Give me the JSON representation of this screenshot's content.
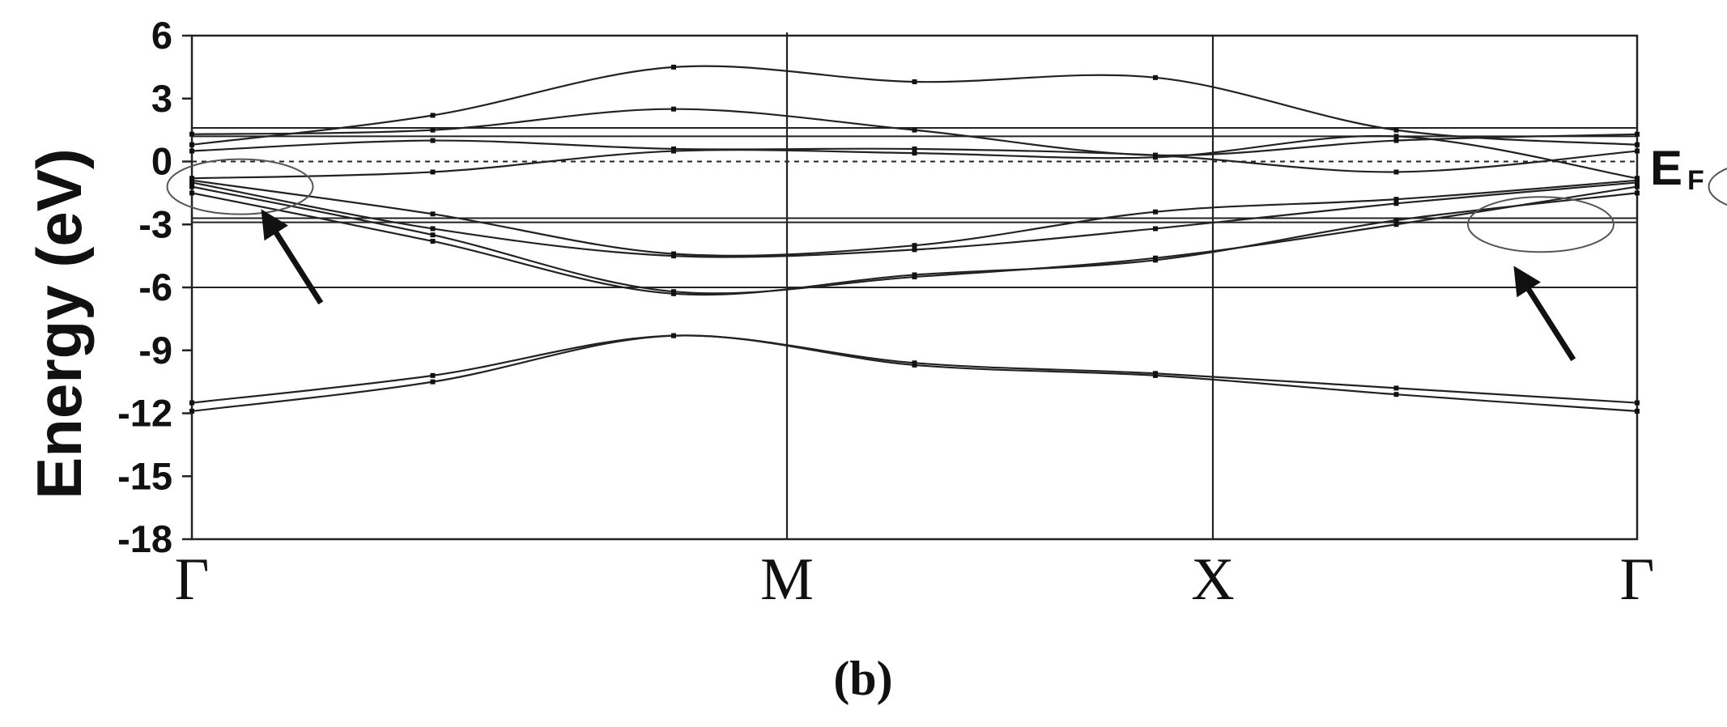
{
  "caption": "(b)",
  "fermi_label": {
    "main": "E",
    "sub": "F"
  },
  "chart_data": {
    "type": "line",
    "title": "",
    "xlabel": "",
    "ylabel": "Energy (eV)",
    "ylim": [
      -18,
      6
    ],
    "yticks": [
      6,
      3,
      0,
      -3,
      -6,
      -9,
      -12,
      -15,
      -18
    ],
    "ytick_labels": [
      "6",
      "3",
      "0",
      "-3",
      "-6",
      "-9",
      "-12",
      "-15",
      "-18"
    ],
    "xlim": [
      0,
      3
    ],
    "xticks": [
      0,
      1.41,
      2.41,
      3.41
    ],
    "xtick_labels": [
      "Γ",
      "M",
      "X",
      "Γ"
    ],
    "fermi_level": 0,
    "horizontal_lines": [
      1.6,
      1.2,
      -2.7,
      -2.9,
      -6.0
    ],
    "series": [
      {
        "x": [
          0,
          0.5,
          1,
          1.5,
          2,
          2.5,
          3
        ],
        "y": [
          0.8,
          2.2,
          4.5,
          3.8,
          4.0,
          1.5,
          0.8
        ]
      },
      {
        "x": [
          0,
          0.5,
          1,
          1.5,
          2,
          2.5,
          3
        ],
        "y": [
          1.3,
          1.5,
          2.5,
          1.5,
          0.3,
          1.0,
          1.3
        ]
      },
      {
        "x": [
          0,
          0.5,
          1,
          1.5,
          2,
          2.5,
          3
        ],
        "y": [
          0.5,
          1.0,
          0.6,
          0.6,
          0.3,
          -0.5,
          0.5
        ]
      },
      {
        "x": [
          0,
          0.5,
          1,
          1.5,
          2,
          2.5,
          3
        ],
        "y": [
          -0.8,
          -0.5,
          0.5,
          0.4,
          0.2,
          1.2,
          -0.8
        ]
      },
      {
        "x": [
          0,
          0.5,
          1,
          1.5,
          2,
          2.5,
          3
        ],
        "y": [
          -0.9,
          -2.5,
          -4.4,
          -4.0,
          -2.4,
          -1.8,
          -0.9
        ]
      },
      {
        "x": [
          0,
          0.5,
          1,
          1.5,
          2,
          2.5,
          3
        ],
        "y": [
          -1.0,
          -3.2,
          -4.5,
          -4.2,
          -3.2,
          -2.0,
          -1.0
        ]
      },
      {
        "x": [
          0,
          0.5,
          1,
          1.5,
          2,
          2.5,
          3
        ],
        "y": [
          -1.2,
          -3.5,
          -6.2,
          -5.5,
          -4.6,
          -3.0,
          -1.2
        ]
      },
      {
        "x": [
          0,
          0.5,
          1,
          1.5,
          2,
          2.5,
          3
        ],
        "y": [
          -1.5,
          -3.8,
          -6.3,
          -5.4,
          -4.7,
          -2.8,
          -1.5
        ]
      },
      {
        "x": [
          0,
          0.5,
          1,
          1.5,
          2,
          2.5,
          3
        ],
        "y": [
          -11.5,
          -10.2,
          -8.3,
          -9.6,
          -10.1,
          -10.8,
          -11.5
        ]
      },
      {
        "x": [
          0,
          0.5,
          1,
          1.5,
          2,
          2.5,
          3
        ],
        "y": [
          -11.9,
          -10.5,
          -8.3,
          -9.7,
          -10.2,
          -11.1,
          -11.9
        ]
      }
    ],
    "annotations": [
      {
        "type": "ellipse",
        "x": 0.1,
        "y": -1.2
      },
      {
        "type": "ellipse",
        "x": 2.8,
        "y": -3.0
      },
      {
        "type": "ellipse",
        "x": 3.3,
        "y": -1.2
      },
      {
        "type": "arrow",
        "target_x": 0.15,
        "target_y": -2.5
      },
      {
        "type": "arrow",
        "target_x": 2.75,
        "target_y": -5.2
      },
      {
        "type": "arrow",
        "target_x": 3.2,
        "target_y": -3.5
      }
    ],
    "grid": false,
    "legend": "none"
  }
}
